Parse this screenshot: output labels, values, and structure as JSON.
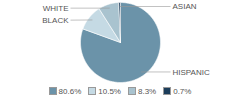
{
  "chart_data": {
    "type": "pie",
    "categories": [
      "HISPANIC",
      "BLACK",
      "WHITE",
      "ASIAN"
    ],
    "values": [
      80.6,
      10.5,
      8.3,
      0.7
    ],
    "value_labels": [
      "80.6%",
      "10.5%",
      "8.3%",
      "0.7%"
    ],
    "colors": [
      "#6b93a9",
      "#c5dae4",
      "#a9c3cf",
      "#1c3d5a"
    ],
    "legend": "bottom"
  }
}
